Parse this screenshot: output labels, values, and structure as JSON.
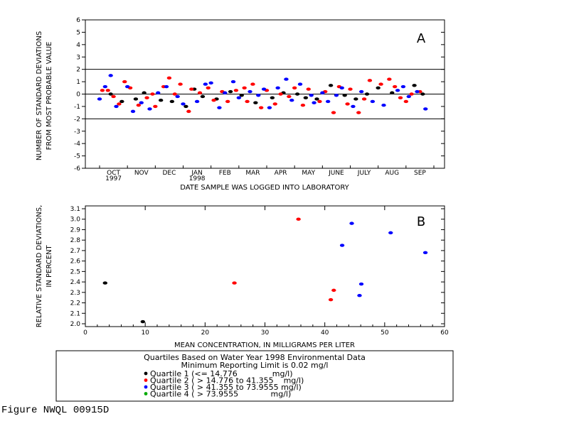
{
  "figure_label": "Figure NWQL 00915D",
  "colors": {
    "q1": "#000000",
    "q2": "#ff0000",
    "q3": "#0000ff",
    "q4": "#00aa00"
  },
  "chart_data": [
    {
      "type": "scatter",
      "panel_label": "A",
      "ylabel_line1": "NUMBER OF STANDARD DEVIATIONS",
      "ylabel_line2": "FROM MOST PROBABLE VALUE",
      "xlabel": "DATE SAMPLE WAS LOGGED INTO LABORATORY",
      "ylim": [
        -6,
        6
      ],
      "yticks": [
        -6,
        -5,
        -4,
        -3,
        -2,
        -1,
        0,
        1,
        2,
        3,
        4,
        5,
        6
      ],
      "reference_lines": [
        2,
        0,
        -2
      ],
      "months": [
        "OCT",
        "NOV",
        "DEC",
        "JAN",
        "FEB",
        "MAR",
        "APR",
        "MAY",
        "JUNE",
        "JULY",
        "AUG",
        "SEP"
      ],
      "year_labels": [
        {
          "month_index": 0,
          "text": "1997"
        },
        {
          "month_index": 3,
          "text": "1998"
        }
      ],
      "series": [
        {
          "quartile": 1,
          "points": [
            [
              0.4,
              0.0
            ],
            [
              0.8,
              -0.6
            ],
            [
              1.3,
              -0.4
            ],
            [
              1.6,
              0.1
            ],
            [
              2.2,
              -0.5
            ],
            [
              2.6,
              -0.6
            ],
            [
              3.1,
              -1.0
            ],
            [
              3.4,
              0.4
            ],
            [
              3.7,
              -0.2
            ],
            [
              4.2,
              -0.4
            ],
            [
              4.7,
              0.2
            ],
            [
              5.1,
              -0.1
            ],
            [
              5.6,
              -0.7
            ],
            [
              6.2,
              -0.3
            ],
            [
              6.6,
              0.1
            ],
            [
              7.1,
              0.0
            ],
            [
              7.4,
              -0.3
            ],
            [
              7.8,
              -0.4
            ],
            [
              8.3,
              0.7
            ],
            [
              8.8,
              -0.1
            ],
            [
              9.2,
              -0.4
            ],
            [
              9.6,
              0.0
            ],
            [
              10.0,
              0.5
            ],
            [
              10.5,
              0.1
            ],
            [
              11.3,
              0.7
            ],
            [
              11.6,
              0.0
            ]
          ]
        },
        {
          "quartile": 2,
          "points": [
            [
              0.1,
              0.3
            ],
            [
              0.3,
              0.3
            ],
            [
              0.5,
              -0.2
            ],
            [
              0.7,
              -0.8
            ],
            [
              0.9,
              1.0
            ],
            [
              1.1,
              0.5
            ],
            [
              1.4,
              -0.9
            ],
            [
              1.7,
              -0.3
            ],
            [
              1.9,
              0.0
            ],
            [
              2.0,
              -1.0
            ],
            [
              2.3,
              0.6
            ],
            [
              2.5,
              1.3
            ],
            [
              2.7,
              0.0
            ],
            [
              2.9,
              0.8
            ],
            [
              3.2,
              -1.4
            ],
            [
              3.3,
              0.4
            ],
            [
              3.6,
              0.1
            ],
            [
              3.9,
              0.5
            ],
            [
              4.1,
              -0.5
            ],
            [
              4.4,
              0.2
            ],
            [
              4.6,
              -0.6
            ],
            [
              4.9,
              0.3
            ],
            [
              5.2,
              0.5
            ],
            [
              5.3,
              -0.6
            ],
            [
              5.5,
              0.8
            ],
            [
              5.8,
              -1.1
            ],
            [
              6.0,
              0.3
            ],
            [
              6.3,
              -0.8
            ],
            [
              6.5,
              0.0
            ],
            [
              6.8,
              -0.2
            ],
            [
              7.0,
              0.5
            ],
            [
              7.3,
              -0.9
            ],
            [
              7.5,
              0.4
            ],
            [
              7.9,
              -0.6
            ],
            [
              8.1,
              0.2
            ],
            [
              8.4,
              -1.5
            ],
            [
              8.6,
              0.6
            ],
            [
              8.9,
              -0.8
            ],
            [
              9.0,
              0.4
            ],
            [
              9.3,
              -1.5
            ],
            [
              9.5,
              -0.4
            ],
            [
              9.7,
              1.1
            ],
            [
              10.1,
              0.8
            ],
            [
              10.4,
              1.2
            ],
            [
              10.6,
              0.6
            ],
            [
              10.8,
              -0.3
            ],
            [
              11.0,
              -0.6
            ],
            [
              11.2,
              0.0
            ],
            [
              11.5,
              0.2
            ]
          ]
        },
        {
          "quartile": 3,
          "points": [
            [
              0.0,
              -0.4
            ],
            [
              0.2,
              0.6
            ],
            [
              0.4,
              1.5
            ],
            [
              0.6,
              -1.0
            ],
            [
              1.0,
              0.6
            ],
            [
              1.2,
              -1.4
            ],
            [
              1.5,
              -0.7
            ],
            [
              1.8,
              -1.2
            ],
            [
              2.1,
              0.1
            ],
            [
              2.4,
              0.6
            ],
            [
              2.8,
              -0.2
            ],
            [
              3.0,
              -0.8
            ],
            [
              3.5,
              -0.6
            ],
            [
              3.8,
              0.8
            ],
            [
              4.0,
              0.9
            ],
            [
              4.3,
              -1.1
            ],
            [
              4.5,
              0.1
            ],
            [
              4.8,
              1.0
            ],
            [
              5.0,
              -0.3
            ],
            [
              5.4,
              0.2
            ],
            [
              5.7,
              -0.1
            ],
            [
              5.9,
              0.4
            ],
            [
              6.1,
              -1.1
            ],
            [
              6.4,
              0.5
            ],
            [
              6.7,
              1.2
            ],
            [
              6.9,
              -0.5
            ],
            [
              7.2,
              0.8
            ],
            [
              7.6,
              -0.1
            ],
            [
              7.7,
              -0.7
            ],
            [
              8.0,
              0.1
            ],
            [
              8.2,
              -0.6
            ],
            [
              8.5,
              -0.1
            ],
            [
              8.7,
              0.5
            ],
            [
              9.1,
              -1.0
            ],
            [
              9.4,
              0.2
            ],
            [
              9.8,
              -0.6
            ],
            [
              10.2,
              -0.9
            ],
            [
              10.7,
              0.3
            ],
            [
              10.9,
              0.6
            ],
            [
              11.1,
              -0.2
            ],
            [
              11.4,
              0.2
            ],
            [
              11.7,
              -1.2
            ]
          ]
        },
        {
          "quartile": 4,
          "points": []
        }
      ]
    },
    {
      "type": "scatter",
      "panel_label": "B",
      "ylabel_line1": "RELATIVE STANDARD DEVIATIONS,",
      "ylabel_line2": "IN PERCENT",
      "xlabel": "MEAN CONCENTRATION, IN MILLIGRAMS PER LITER",
      "xlim": [
        0,
        60
      ],
      "ylim": [
        2.0,
        3.1
      ],
      "xticks": [
        0,
        10,
        20,
        30,
        40,
        50,
        60
      ],
      "yticks": [
        "2.0",
        "2.1",
        "2.2",
        "2.3",
        "2.4",
        "2.5",
        "2.6",
        "2.7",
        "2.8",
        "2.9",
        "3.0",
        "3.1"
      ],
      "series": [
        {
          "quartile": 1,
          "points": [
            [
              3.3,
              2.39
            ],
            [
              9.6,
              2.02
            ]
          ]
        },
        {
          "quartile": 2,
          "points": [
            [
              24.9,
              2.39
            ],
            [
              35.6,
              3.0
            ],
            [
              41.0,
              2.23
            ],
            [
              41.5,
              2.32
            ]
          ]
        },
        {
          "quartile": 3,
          "points": [
            [
              42.9,
              2.75
            ],
            [
              44.5,
              2.96
            ],
            [
              45.8,
              2.27
            ],
            [
              46.1,
              2.38
            ],
            [
              51.0,
              2.87
            ],
            [
              56.8,
              2.68
            ]
          ]
        },
        {
          "quartile": 4,
          "points": []
        }
      ]
    }
  ],
  "legend": {
    "title_line1": "Quartiles Based on Water Year 1998 Environmental Data",
    "title_line2": "Minimum Reporting Limit is 0.02 mg/l",
    "entries": [
      "Quartile 1 (<= 14.776              mg/l)",
      "Quartile 2 ( > 14.776 to 41.355    mg/l)",
      "Quartile 3 ( > 41.355 to 73.9555 mg/l)",
      "Quartile 4 ( > 73.9555             mg/l)"
    ]
  }
}
